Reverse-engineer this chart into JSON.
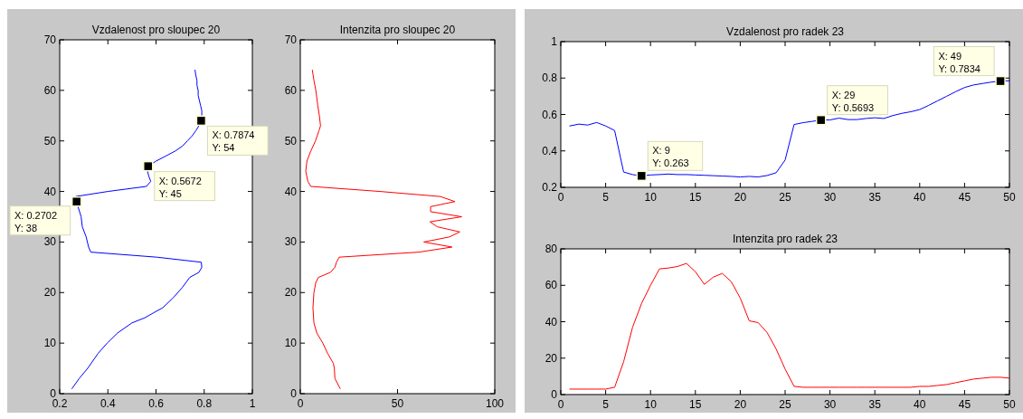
{
  "chart_data": [
    {
      "type": "line",
      "title": "Vzdalenost pro sloupec 20",
      "xlim": [
        0.2,
        1
      ],
      "xticks": [
        {
          "value": 0.2,
          "label": "0.2"
        },
        {
          "value": 0.4,
          "label": "0.4"
        },
        {
          "value": 0.6,
          "label": "0.6"
        },
        {
          "value": 0.8,
          "label": "0.8"
        },
        1
      ],
      "ylim": [
        0,
        70
      ],
      "yticks": [
        0,
        10,
        20,
        30,
        40,
        50,
        60,
        70
      ],
      "series": [
        {
          "color": "#0000ff",
          "x": [
            0.251,
            0.281,
            0.316,
            0.36,
            0.397,
            0.44,
            0.5,
            0.553,
            0.59,
            0.628,
            0.672,
            0.709,
            0.74,
            0.778,
            0.79,
            0.788,
            0.603,
            0.329,
            0.32,
            0.31,
            0.294,
            0.289,
            0.276,
            0.2702,
            0.266,
            0.4,
            0.56,
            0.578,
            0.57,
            0.565,
            0.5672,
            0.6,
            0.64,
            0.68,
            0.71,
            0.73,
            0.75,
            0.765,
            0.778,
            0.7874,
            0.79,
            0.79,
            0.785,
            0.78,
            0.775,
            0.775,
            0.77,
            0.77,
            0.765,
            0.762
          ],
          "values": [
            1,
            3,
            5,
            8,
            10,
            12,
            14,
            15,
            16,
            17,
            19,
            21,
            23,
            24,
            25,
            26,
            27,
            28,
            29,
            31,
            33,
            35,
            37,
            38,
            39,
            40,
            41,
            42,
            43,
            44,
            45,
            46,
            47,
            48,
            49,
            50,
            51,
            52,
            53,
            54,
            55,
            56,
            57,
            58,
            59,
            60,
            61,
            62,
            63,
            64
          ]
        }
      ],
      "annotations": [
        {
          "text": "X: 0.7874\nY: 54",
          "x": 0.7874,
          "y": 54
        },
        {
          "text": "X: 0.5672\nY: 45",
          "x": 0.5672,
          "y": 45
        },
        {
          "text": "X: 0.2702\nY: 38",
          "x": 0.2702,
          "y": 38
        }
      ]
    },
    {
      "type": "line",
      "title": "Intenzita pro sloupec 20",
      "xlim": [
        0,
        100
      ],
      "xticks": [
        0,
        50,
        100
      ],
      "ylim": [
        0,
        70
      ],
      "yticks": [
        0,
        10,
        20,
        30,
        40,
        50,
        60,
        70
      ],
      "series": [
        {
          "color": "#ff0000",
          "x": [
            20.5,
            17.8,
            17.5,
            17,
            14,
            11.6,
            8.5,
            7,
            6.5,
            7,
            8,
            9.3,
            15.5,
            17.8,
            18.6,
            20,
            61,
            78,
            63.5,
            76.7,
            82,
            70.5,
            66.7,
            83,
            67,
            67,
            79.5,
            72,
            41,
            5.4,
            3.9,
            2.8,
            3.4,
            5.4,
            7.8,
            9.6,
            10.4,
            9.8,
            9,
            8,
            7,
            6.2
          ],
          "values": [
            1,
            3,
            5,
            6,
            8,
            10,
            12,
            14,
            17,
            20,
            22,
            23,
            24,
            25,
            26,
            27,
            28,
            29,
            30,
            31,
            32,
            33,
            34,
            35,
            36,
            37,
            38,
            39,
            40,
            41,
            42,
            44,
            46,
            48,
            50,
            52,
            53,
            55,
            57,
            60,
            62,
            64
          ]
        }
      ]
    },
    {
      "type": "line",
      "title": "Vzdalenost pro radek 23",
      "xlim": [
        0,
        50
      ],
      "xticks": [
        0,
        5,
        10,
        15,
        20,
        25,
        30,
        35,
        40,
        45,
        50
      ],
      "ylim": [
        0.2,
        1
      ],
      "yticks": [
        {
          "value": 0.2,
          "label": "0.2"
        },
        {
          "value": 0.4,
          "label": "0.4"
        },
        {
          "value": 0.6,
          "label": "0.6"
        },
        {
          "value": 0.8,
          "label": "0.8"
        },
        1
      ],
      "x": [
        1,
        2,
        3,
        4,
        5,
        6,
        7,
        8,
        9,
        10,
        11,
        12,
        13,
        14,
        15,
        16,
        17,
        18,
        19,
        20,
        21,
        22,
        23,
        24,
        25,
        26,
        27,
        28,
        29,
        30,
        31,
        32,
        33,
        34,
        35,
        36,
        37,
        38,
        39,
        40,
        41,
        42,
        43,
        44,
        45,
        46,
        47,
        48,
        49,
        50
      ],
      "series": [
        {
          "color": "#0000ff",
          "values": [
            0.537,
            0.547,
            0.542,
            0.556,
            0.537,
            0.512,
            0.284,
            0.27,
            0.263,
            0.268,
            0.27,
            0.273,
            0.27,
            0.27,
            0.268,
            0.266,
            0.264,
            0.262,
            0.26,
            0.257,
            0.26,
            0.257,
            0.265,
            0.28,
            0.35,
            0.545,
            0.555,
            0.562,
            0.5693,
            0.57,
            0.58,
            0.572,
            0.572,
            0.578,
            0.582,
            0.578,
            0.594,
            0.606,
            0.615,
            0.627,
            0.65,
            0.675,
            0.7,
            0.725,
            0.748,
            0.762,
            0.77,
            0.778,
            0.7834,
            0.785
          ]
        }
      ],
      "annotations": [
        {
          "text": "X: 9\nY: 0.263",
          "x": 9,
          "y": 0.263
        },
        {
          "text": "X: 29\nY: 0.5693",
          "x": 29,
          "y": 0.5693
        },
        {
          "text": "X: 49\nY: 0.7834",
          "x": 49,
          "y": 0.7834
        }
      ]
    },
    {
      "type": "line",
      "title": "Intenzita pro radek 23",
      "xlim": [
        0,
        50
      ],
      "xticks": [
        0,
        5,
        10,
        15,
        20,
        25,
        30,
        35,
        40,
        45,
        50
      ],
      "ylim": [
        0,
        80
      ],
      "yticks": [
        0,
        20,
        40,
        60,
        80
      ],
      "x": [
        1,
        2,
        3,
        4,
        5,
        6,
        7,
        8,
        9,
        10,
        11,
        12,
        13,
        14,
        15,
        16,
        17,
        18,
        19,
        20,
        21,
        22,
        23,
        24,
        25,
        26,
        27,
        28,
        29,
        30,
        31,
        32,
        33,
        34,
        35,
        36,
        37,
        38,
        39,
        40,
        41,
        42,
        43,
        44,
        45,
        46,
        47,
        48,
        49,
        50
      ],
      "series": [
        {
          "color": "#ff0000",
          "values": [
            3,
            3,
            3,
            3,
            3,
            4,
            18,
            37,
            50,
            60,
            69,
            69.5,
            70.3,
            72,
            67.5,
            60.5,
            64.5,
            66.5,
            62,
            53,
            40.5,
            39.5,
            34,
            25,
            14,
            4.5,
            4,
            4,
            4,
            4,
            4,
            4,
            4,
            4,
            4,
            4,
            4,
            4,
            4,
            4.5,
            4.5,
            5,
            5.5,
            6.5,
            7.5,
            8.5,
            9,
            9.5,
            9.5,
            9
          ]
        }
      ]
    }
  ]
}
